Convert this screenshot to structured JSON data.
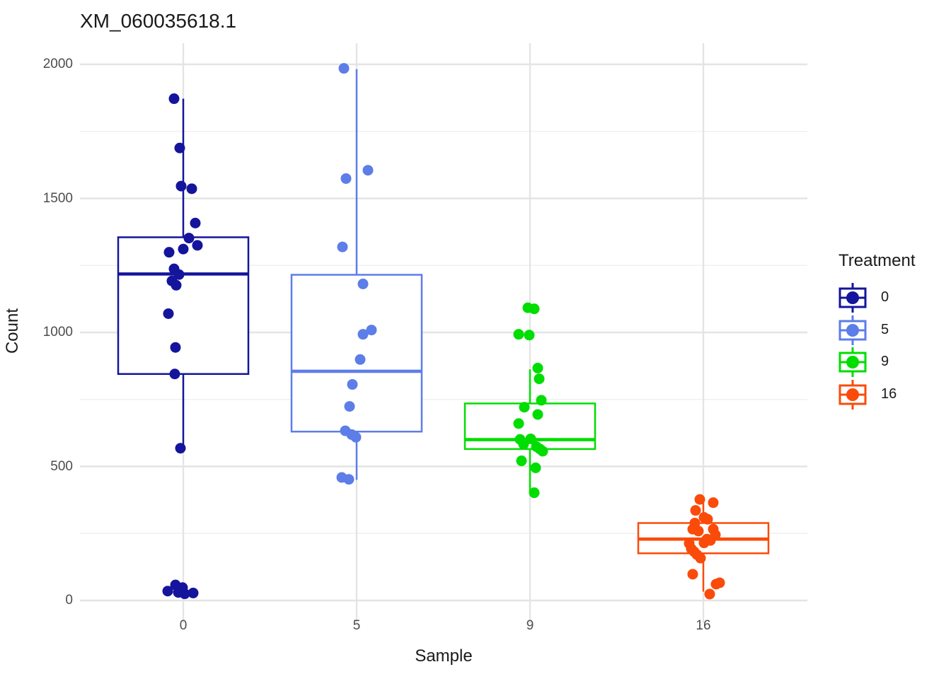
{
  "title": "XM_060035618.1",
  "x_axis": {
    "label": "Sample",
    "tick_labels": [
      "0",
      "5",
      "9",
      "16"
    ]
  },
  "y_axis": {
    "label": "Count",
    "tick_labels": [
      "0",
      "500",
      "1000",
      "1500",
      "2000"
    ]
  },
  "legend": {
    "title": "Treatment",
    "items": [
      {
        "label": "0",
        "color": "#14149C"
      },
      {
        "label": "5",
        "color": "#5D7DE8"
      },
      {
        "label": "9",
        "color": "#00DD00"
      },
      {
        "label": "16",
        "color": "#FA4B0A"
      }
    ]
  },
  "chart_data": {
    "type": "boxplot",
    "subtype": "boxplot-with-jitter",
    "title": "XM_060035618.1",
    "xlabel": "Sample",
    "ylabel": "Count",
    "categories": [
      "0",
      "5",
      "9",
      "16"
    ],
    "legend_title": "Treatment",
    "legend_position": "right",
    "grid": true,
    "ylim": [
      -84,
      2079
    ],
    "y_major_ticks": [
      0,
      500,
      1000,
      1500,
      2000
    ],
    "y_minor_gridlines": [
      250,
      750,
      1250,
      1750
    ],
    "series": [
      {
        "treatment": "0",
        "color": "#14149C",
        "box": {
          "q1": 845,
          "median": 1218,
          "q3": 1355,
          "whisker_low": 565,
          "whisker_high": 1872
        },
        "points": [
          [
            -13,
            1872
          ],
          [
            -5,
            1688
          ],
          [
            -3,
            1546
          ],
          [
            12,
            1536
          ],
          [
            17,
            1408
          ],
          [
            8,
            1352
          ],
          [
            20,
            1325
          ],
          [
            0,
            1311
          ],
          [
            -20,
            1299
          ],
          [
            -13,
            1237
          ],
          [
            -6,
            1216
          ],
          [
            -16,
            1192
          ],
          [
            -10,
            1176
          ],
          [
            -21,
            1070
          ],
          [
            -11,
            944
          ],
          [
            -12,
            845
          ],
          [
            -4,
            568
          ],
          [
            -22,
            35
          ],
          [
            -11,
            58
          ],
          [
            -7,
            30
          ],
          [
            -1,
            48
          ],
          [
            2,
            25
          ],
          [
            14,
            28
          ]
        ]
      },
      {
        "treatment": "5",
        "color": "#5D7DE8",
        "box": {
          "q1": 630,
          "median": 855,
          "q3": 1215,
          "whisker_low": 450,
          "whisker_high": 1982
        },
        "points": [
          [
            -18,
            1985
          ],
          [
            16,
            1605
          ],
          [
            -15,
            1574
          ],
          [
            -20,
            1319
          ],
          [
            9,
            1181
          ],
          [
            21,
            1009
          ],
          [
            9,
            993
          ],
          [
            5,
            899
          ],
          [
            -6,
            806
          ],
          [
            -10,
            724
          ],
          [
            -16,
            633
          ],
          [
            -7,
            619
          ],
          [
            -1,
            609
          ],
          [
            -21,
            459
          ],
          [
            -11,
            452
          ]
        ]
      },
      {
        "treatment": "9",
        "color": "#00DD00",
        "box": {
          "q1": 565,
          "median": 600,
          "q3": 735,
          "whisker_low": 405,
          "whisker_high": 862
        },
        "points": [
          [
            -3,
            1092
          ],
          [
            6,
            1088
          ],
          [
            -16,
            993
          ],
          [
            -1,
            990
          ],
          [
            11,
            867
          ],
          [
            13,
            827
          ],
          [
            16,
            747
          ],
          [
            -8,
            721
          ],
          [
            11,
            694
          ],
          [
            -16,
            660
          ],
          [
            -14,
            601
          ],
          [
            1,
            603
          ],
          [
            -9,
            583
          ],
          [
            9,
            574
          ],
          [
            14,
            565
          ],
          [
            18,
            557
          ],
          [
            -12,
            521
          ],
          [
            8,
            495
          ],
          [
            6,
            402
          ]
        ]
      },
      {
        "treatment": "16",
        "color": "#FA4B0A",
        "box": {
          "q1": 176,
          "median": 229,
          "q3": 289,
          "whisker_low": 33,
          "whisker_high": 375
        },
        "points": [
          [
            -5,
            377
          ],
          [
            14,
            365
          ],
          [
            -11,
            336
          ],
          [
            1,
            310
          ],
          [
            6,
            303
          ],
          [
            -12,
            289
          ],
          [
            -15,
            266
          ],
          [
            -7,
            259
          ],
          [
            14,
            266
          ],
          [
            17,
            245
          ],
          [
            5,
            229
          ],
          [
            10,
            224
          ],
          [
            1,
            215
          ],
          [
            -20,
            213
          ],
          [
            -17,
            193
          ],
          [
            -13,
            182
          ],
          [
            -9,
            171
          ],
          [
            -4,
            158
          ],
          [
            -15,
            98
          ],
          [
            18,
            61
          ],
          [
            23,
            66
          ],
          [
            9,
            24
          ]
        ]
      }
    ]
  }
}
